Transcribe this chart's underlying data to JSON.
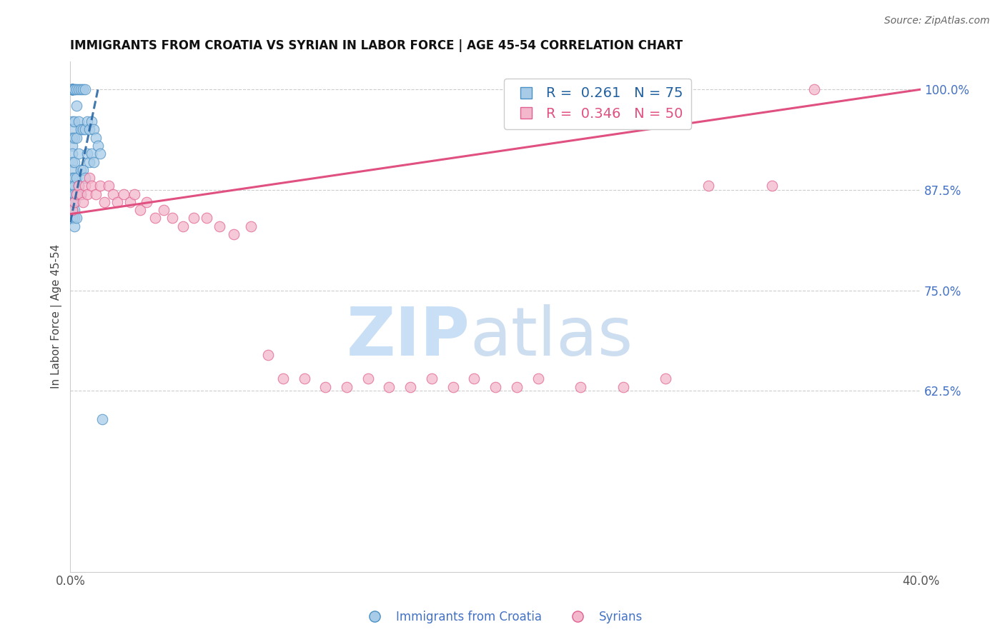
{
  "title": "IMMIGRANTS FROM CROATIA VS SYRIAN IN LABOR FORCE | AGE 45-54 CORRELATION CHART",
  "source": "Source: ZipAtlas.com",
  "ylabel_left": "In Labor Force | Age 45-54",
  "x_min": 0.0,
  "x_max": 0.4,
  "y_min": 0.4,
  "y_max": 1.035,
  "right_yticks": [
    1.0,
    0.875,
    0.75,
    0.625
  ],
  "right_ytick_labels": [
    "100.0%",
    "87.5%",
    "75.0%",
    "62.5%"
  ],
  "croatia_color": "#a8cce8",
  "syria_color": "#f4b8cc",
  "croatia_edge_color": "#4a90c4",
  "syria_edge_color": "#e06090",
  "croatia_line_color": "#2060a0",
  "syria_line_color": "#e05080",
  "croatia_R": 0.261,
  "croatia_N": 75,
  "syria_R": 0.346,
  "syria_N": 50,
  "croatia_x": [
    0.001,
    0.001,
    0.001,
    0.001,
    0.001,
    0.001,
    0.001,
    0.001,
    0.001,
    0.001,
    0.001,
    0.001,
    0.001,
    0.001,
    0.001,
    0.001,
    0.001,
    0.001,
    0.001,
    0.001,
    0.001,
    0.001,
    0.001,
    0.001,
    0.001,
    0.001,
    0.001,
    0.001,
    0.001,
    0.001,
    0.002,
    0.002,
    0.002,
    0.002,
    0.002,
    0.002,
    0.002,
    0.002,
    0.002,
    0.002,
    0.002,
    0.002,
    0.002,
    0.003,
    0.003,
    0.003,
    0.003,
    0.003,
    0.003,
    0.004,
    0.004,
    0.004,
    0.004,
    0.005,
    0.005,
    0.005,
    0.005,
    0.006,
    0.006,
    0.006,
    0.007,
    0.007,
    0.007,
    0.008,
    0.008,
    0.009,
    0.009,
    0.01,
    0.01,
    0.011,
    0.011,
    0.012,
    0.013,
    0.014,
    0.015
  ],
  "croatia_y": [
    1.0,
    1.0,
    1.0,
    1.0,
    1.0,
    1.0,
    1.0,
    1.0,
    1.0,
    0.96,
    0.95,
    0.94,
    0.93,
    0.92,
    0.91,
    0.9,
    0.89,
    0.88,
    0.87,
    0.87,
    0.86,
    0.86,
    0.86,
    0.85,
    0.85,
    0.85,
    0.84,
    0.84,
    0.84,
    0.84,
    1.0,
    1.0,
    0.96,
    0.94,
    0.91,
    0.89,
    0.88,
    0.87,
    0.86,
    0.86,
    0.85,
    0.84,
    0.83,
    1.0,
    0.98,
    0.94,
    0.89,
    0.87,
    0.84,
    1.0,
    0.96,
    0.92,
    0.88,
    1.0,
    0.95,
    0.9,
    0.87,
    1.0,
    0.95,
    0.9,
    1.0,
    0.95,
    0.89,
    0.96,
    0.92,
    0.95,
    0.91,
    0.96,
    0.92,
    0.95,
    0.91,
    0.94,
    0.93,
    0.92,
    0.59
  ],
  "syria_x": [
    0.001,
    0.002,
    0.003,
    0.004,
    0.005,
    0.006,
    0.007,
    0.008,
    0.009,
    0.01,
    0.012,
    0.014,
    0.016,
    0.018,
    0.02,
    0.022,
    0.025,
    0.028,
    0.03,
    0.033,
    0.036,
    0.04,
    0.044,
    0.048,
    0.053,
    0.058,
    0.064,
    0.07,
    0.077,
    0.085,
    0.093,
    0.1,
    0.11,
    0.12,
    0.13,
    0.14,
    0.15,
    0.16,
    0.17,
    0.18,
    0.19,
    0.2,
    0.21,
    0.22,
    0.24,
    0.26,
    0.28,
    0.3,
    0.33,
    0.35
  ],
  "syria_y": [
    0.85,
    0.86,
    0.87,
    0.88,
    0.87,
    0.86,
    0.88,
    0.87,
    0.89,
    0.88,
    0.87,
    0.88,
    0.86,
    0.88,
    0.87,
    0.86,
    0.87,
    0.86,
    0.87,
    0.85,
    0.86,
    0.84,
    0.85,
    0.84,
    0.83,
    0.84,
    0.84,
    0.83,
    0.82,
    0.83,
    0.67,
    0.64,
    0.64,
    0.63,
    0.63,
    0.64,
    0.63,
    0.63,
    0.64,
    0.63,
    0.64,
    0.63,
    0.63,
    0.64,
    0.63,
    0.63,
    0.64,
    0.88,
    0.88,
    1.0
  ]
}
